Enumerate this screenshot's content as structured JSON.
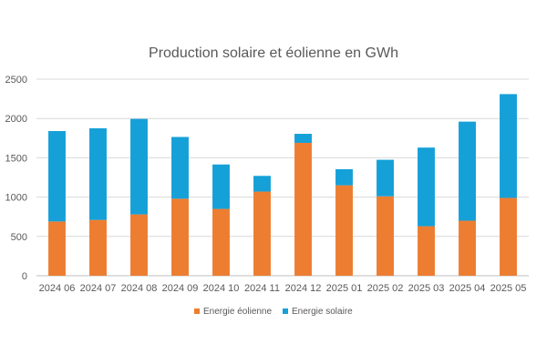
{
  "chart_data": {
    "type": "bar",
    "stacked": true,
    "title": "Production solaire et éolienne  en GWh",
    "xlabel": "",
    "ylabel": "",
    "ylim": [
      0,
      2500
    ],
    "yticks": [
      "0",
      "500",
      "1000",
      "1500",
      "2000",
      "2500"
    ],
    "grid": true,
    "legend_position": "bottom",
    "categories": [
      "2024 06",
      "2024 07",
      "2024 08",
      "2024 09",
      "2024 10",
      "2024 11",
      "2024 12",
      "2025 01",
      "2025 02",
      "2025 03",
      "2025 04",
      "2025 05"
    ],
    "series": [
      {
        "name": "Energie éolienne",
        "color": "#ED7D31",
        "values": [
          690,
          710,
          780,
          980,
          850,
          1070,
          1690,
          1150,
          1010,
          630,
          700,
          990
        ]
      },
      {
        "name": "Energie solaire",
        "color": "#15A0D8",
        "values": [
          1150,
          1165,
          1215,
          785,
          565,
          200,
          115,
          205,
          465,
          1000,
          1260,
          1320
        ]
      }
    ]
  }
}
